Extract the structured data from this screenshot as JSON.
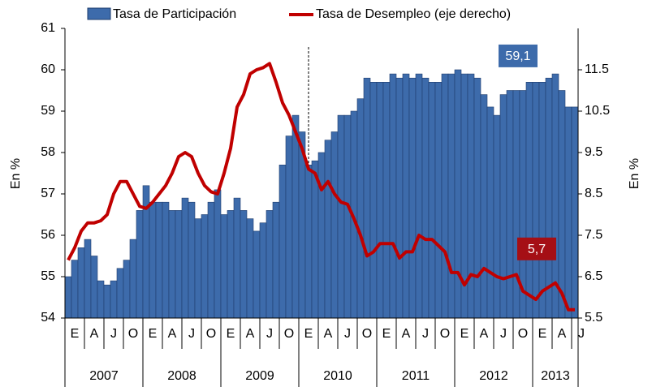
{
  "chart_data": {
    "type": "bar",
    "categories": [
      "E",
      null,
      null,
      "A",
      null,
      null,
      "J",
      null,
      null,
      "O",
      null,
      null,
      "E",
      null,
      null,
      "A",
      null,
      null,
      "J",
      null,
      null,
      "O",
      null,
      null,
      "E",
      null,
      null,
      "A",
      null,
      null,
      "J",
      null,
      null,
      "O",
      null,
      null,
      "E",
      null,
      null,
      "A",
      null,
      null,
      "J",
      null,
      null,
      "O",
      null,
      null,
      "E",
      null,
      null,
      "A",
      null,
      null,
      "J",
      null,
      null,
      "O",
      null,
      null,
      "E",
      null,
      null,
      "A",
      null,
      null,
      "J",
      null,
      null,
      "O",
      null,
      null,
      "E",
      null,
      null,
      "A",
      null,
      null,
      "J"
    ],
    "years": [
      "2007",
      "2008",
      "2009",
      "2010",
      "2011",
      "2012",
      "2013"
    ],
    "series": [
      {
        "name": "Tasa de Participación",
        "type": "bar",
        "color": "#3d6bab",
        "values": [
          55.0,
          55.4,
          55.7,
          55.9,
          55.5,
          54.9,
          54.8,
          54.9,
          55.2,
          55.4,
          55.9,
          56.6,
          57.2,
          56.8,
          56.8,
          56.8,
          56.6,
          56.6,
          56.9,
          56.8,
          56.4,
          56.5,
          56.8,
          57.1,
          56.5,
          56.6,
          56.9,
          56.6,
          56.4,
          56.1,
          56.3,
          56.6,
          56.8,
          57.7,
          58.4,
          58.9,
          58.5,
          57.7,
          57.8,
          58.0,
          58.3,
          58.5,
          58.9,
          58.9,
          59.0,
          59.3,
          59.8,
          59.7,
          59.7,
          59.7,
          59.9,
          59.8,
          59.9,
          59.8,
          59.9,
          59.8,
          59.7,
          59.7,
          59.9,
          59.9,
          60.0,
          59.9,
          59.9,
          59.8,
          59.4,
          59.1,
          58.9,
          59.4,
          59.5,
          59.5,
          59.5,
          59.7,
          59.7,
          59.7,
          59.8,
          59.9,
          59.5,
          59.1,
          59.1
        ],
        "value_labels": [
          null,
          null,
          null,
          null,
          null,
          null,
          null,
          null,
          null,
          null,
          null,
          null,
          null,
          null,
          null,
          null,
          null,
          null,
          null,
          null,
          null,
          null,
          null,
          null,
          null,
          null,
          null,
          null,
          null,
          null,
          null,
          null,
          null,
          null,
          null,
          null,
          null,
          null,
          null,
          null,
          null,
          null,
          null,
          null,
          null,
          null,
          null,
          null,
          null,
          null,
          null,
          null,
          null,
          null,
          null,
          null,
          null,
          null,
          null,
          null,
          null,
          null,
          null,
          null,
          null,
          null,
          null,
          null,
          null,
          null,
          null,
          null,
          null,
          null,
          null,
          null,
          null,
          null,
          "59,1"
        ]
      },
      {
        "name": "Tasa de Desempleo (eje derecho)",
        "type": "line",
        "axis": "y2",
        "color": "#c00000",
        "values": [
          6.9,
          7.2,
          7.6,
          7.8,
          7.8,
          7.85,
          8.0,
          8.5,
          8.8,
          8.8,
          8.5,
          8.2,
          8.15,
          8.3,
          8.5,
          8.7,
          9.0,
          9.4,
          9.5,
          9.4,
          9.0,
          8.7,
          8.55,
          8.5,
          9.0,
          9.6,
          10.6,
          10.9,
          11.4,
          11.5,
          11.55,
          11.65,
          11.2,
          10.7,
          10.4,
          10.0,
          9.6,
          9.1,
          9.0,
          8.6,
          8.8,
          8.5,
          8.3,
          8.25,
          7.9,
          7.5,
          7.0,
          7.1,
          7.3,
          7.3,
          7.3,
          6.95,
          7.1,
          7.1,
          7.5,
          7.4,
          7.4,
          7.25,
          7.1,
          6.6,
          6.6,
          6.3,
          6.55,
          6.5,
          6.7,
          6.6,
          6.5,
          6.45,
          6.5,
          6.55,
          6.15,
          6.05,
          5.95,
          6.15,
          6.25,
          6.35,
          6.1,
          5.7,
          5.7
        ],
        "value_labels": [
          null,
          null,
          null,
          null,
          null,
          null,
          null,
          null,
          null,
          null,
          null,
          null,
          null,
          null,
          null,
          null,
          null,
          null,
          null,
          null,
          null,
          null,
          null,
          null,
          null,
          null,
          null,
          null,
          null,
          null,
          null,
          null,
          null,
          null,
          null,
          null,
          null,
          null,
          null,
          null,
          null,
          null,
          null,
          null,
          null,
          null,
          null,
          null,
          null,
          null,
          null,
          null,
          null,
          null,
          null,
          null,
          null,
          null,
          null,
          null,
          null,
          null,
          null,
          null,
          null,
          null,
          null,
          null,
          null,
          null,
          null,
          null,
          null,
          null,
          null,
          null,
          null,
          null,
          "5,7"
        ]
      }
    ],
    "ylabel": "En %",
    "y2label": "En %",
    "ylim": [
      54,
      61
    ],
    "yticks": [
      54,
      55,
      56,
      57,
      58,
      59,
      60,
      61
    ],
    "y2lim": [
      5.5,
      12.5
    ],
    "y2ticks": [
      5.5,
      6.5,
      7.5,
      8.5,
      9.5,
      10.5,
      11.5
    ],
    "grid": false
  }
}
